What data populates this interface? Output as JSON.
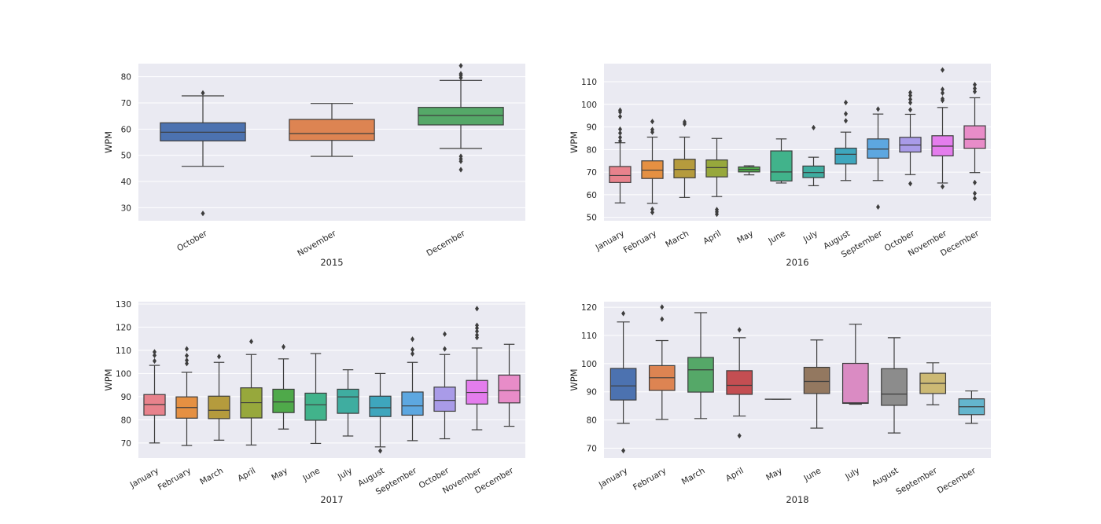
{
  "figure": {
    "background": "#ffffff",
    "plot_background": "#eaeaf2",
    "grid": true,
    "grid_color": "#ffffff",
    "line_color": "#3d3d3d"
  },
  "chart_data": [
    {
      "type": "box",
      "xlabel": "2015",
      "ylabel": "WPM",
      "ylim": [
        25,
        85
      ],
      "yticks": [
        30,
        40,
        50,
        60,
        70,
        80
      ],
      "categories": [
        "October",
        "November",
        "December"
      ],
      "colors": [
        "#4c72b0",
        "#dd8452",
        "#55a868"
      ],
      "boxes": [
        {
          "whislo": 45.8,
          "q1": 55.5,
          "med": 58.8,
          "q3": 62.4,
          "whishi": 72.7,
          "fliers": [
            27.8,
            73.8
          ]
        },
        {
          "whislo": 49.6,
          "q1": 55.7,
          "med": 58.3,
          "q3": 63.7,
          "whishi": 69.8,
          "fliers": []
        },
        {
          "whislo": 52.6,
          "q1": 61.6,
          "med": 65.2,
          "q3": 68.3,
          "whishi": 78.6,
          "fliers": [
            44.5,
            47.7,
            48.6,
            49.6,
            79.6,
            80.5,
            81.1,
            84.2
          ]
        }
      ]
    },
    {
      "type": "box",
      "xlabel": "2016",
      "ylabel": "WPM",
      "ylim": [
        48.5,
        118
      ],
      "yticks": [
        50,
        60,
        70,
        80,
        90,
        100,
        110
      ],
      "categories": [
        "January",
        "February",
        "March",
        "April",
        "May",
        "June",
        "July",
        "August",
        "September",
        "October",
        "November",
        "December"
      ],
      "colors": [
        "#e8828c",
        "#e59042",
        "#b59b3d",
        "#97a83c",
        "#4fa94a",
        "#41b38b",
        "#3fada0",
        "#3ea6bd",
        "#5da7e0",
        "#a99be8",
        "#e47ded",
        "#e88cc8"
      ],
      "boxes": [
        {
          "whislo": 56.4,
          "q1": 65.4,
          "med": 68.5,
          "q3": 72.5,
          "whishi": 83.0,
          "fliers": [
            83.8,
            85.4,
            87.3,
            89.0,
            94.6,
            96.6,
            97.4
          ]
        },
        {
          "whislo": 56.2,
          "q1": 67.2,
          "med": 70.9,
          "q3": 75.0,
          "whishi": 85.5,
          "fliers": [
            52.2,
            53.6,
            87.7,
            88.8,
            92.4
          ]
        },
        {
          "whislo": 58.8,
          "q1": 67.5,
          "med": 71.2,
          "q3": 75.7,
          "whishi": 85.5,
          "fliers": [
            91.3,
            92.2
          ]
        },
        {
          "whislo": 59.2,
          "q1": 67.9,
          "med": 72.0,
          "q3": 75.4,
          "whishi": 84.9,
          "fliers": [
            51.4,
            52.4,
            53.4
          ]
        },
        {
          "whislo": 68.8,
          "q1": 70.1,
          "med": 71.2,
          "q3": 72.3,
          "whishi": 72.8,
          "fliers": []
        },
        {
          "whislo": 65.2,
          "q1": 66.1,
          "med": 70.1,
          "q3": 79.4,
          "whishi": 84.7,
          "fliers": []
        },
        {
          "whislo": 64.0,
          "q1": 67.6,
          "med": 69.8,
          "q3": 72.7,
          "whishi": 76.6,
          "fliers": [
            89.7
          ]
        },
        {
          "whislo": 66.3,
          "q1": 73.6,
          "med": 77.9,
          "q3": 80.6,
          "whishi": 87.7,
          "fliers": [
            92.7,
            95.8,
            100.8
          ]
        },
        {
          "whislo": 66.3,
          "q1": 76.2,
          "med": 80.2,
          "q3": 84.7,
          "whishi": 95.7,
          "fliers": [
            54.6,
            97.9
          ]
        },
        {
          "whislo": 68.9,
          "q1": 78.9,
          "med": 82.0,
          "q3": 85.4,
          "whishi": 95.6,
          "fliers": [
            64.9,
            97.6,
            100.7,
            102.2,
            103.9,
            105.2
          ]
        },
        {
          "whislo": 65.2,
          "q1": 77.2,
          "med": 81.5,
          "q3": 86.1,
          "whishi": 98.6,
          "fliers": [
            63.6,
            101.7,
            102.4,
            105.0,
            106.6,
            115.2
          ]
        },
        {
          "whislo": 69.8,
          "q1": 80.5,
          "med": 84.6,
          "q3": 90.5,
          "whishi": 102.9,
          "fliers": [
            58.4,
            60.6,
            65.4,
            105.6,
            107.0,
            108.7
          ]
        }
      ]
    },
    {
      "type": "box",
      "xlabel": "2017",
      "ylabel": "WPM",
      "ylim": [
        63.5,
        131
      ],
      "yticks": [
        70,
        80,
        90,
        100,
        110,
        120,
        130
      ],
      "categories": [
        "January",
        "February",
        "March",
        "April",
        "May",
        "June",
        "July",
        "August",
        "September",
        "October",
        "November",
        "December"
      ],
      "colors": [
        "#e8828c",
        "#e59042",
        "#b59b3d",
        "#97a83c",
        "#4fa94a",
        "#41b38b",
        "#3fada0",
        "#3ea6bd",
        "#5da7e0",
        "#a99be8",
        "#e47ded",
        "#e88cc8"
      ],
      "boxes": [
        {
          "whislo": 70.0,
          "q1": 82.0,
          "med": 86.6,
          "q3": 90.9,
          "whishi": 103.5,
          "fliers": [
            105.4,
            107.8,
            109.3
          ]
        },
        {
          "whislo": 68.9,
          "q1": 80.7,
          "med": 85.3,
          "q3": 89.9,
          "whishi": 100.5,
          "fliers": [
            104.3,
            105.7,
            107.7,
            110.6
          ]
        },
        {
          "whislo": 71.2,
          "q1": 80.5,
          "med": 84.1,
          "q3": 90.2,
          "whishi": 104.8,
          "fliers": [
            107.3
          ]
        },
        {
          "whislo": 69.1,
          "q1": 80.8,
          "med": 87.4,
          "q3": 93.8,
          "whishi": 108.2,
          "fliers": [
            113.8
          ]
        },
        {
          "whislo": 76.0,
          "q1": 83.1,
          "med": 87.7,
          "q3": 93.2,
          "whishi": 106.3,
          "fliers": [
            111.5
          ]
        },
        {
          "whislo": 69.8,
          "q1": 79.8,
          "med": 86.5,
          "q3": 91.5,
          "whishi": 108.6,
          "fliers": []
        },
        {
          "whislo": 73.0,
          "q1": 82.8,
          "med": 89.9,
          "q3": 93.2,
          "whishi": 101.6,
          "fliers": []
        },
        {
          "whislo": 68.3,
          "q1": 81.4,
          "med": 85.2,
          "q3": 90.2,
          "whishi": 100.0,
          "fliers": [
            66.6
          ]
        },
        {
          "whislo": 71.0,
          "q1": 82.0,
          "med": 86.0,
          "q3": 92.0,
          "whishi": 104.8,
          "fliers": [
            108.5,
            110.3,
            114.8
          ]
        },
        {
          "whislo": 71.8,
          "q1": 83.7,
          "med": 88.4,
          "q3": 94.1,
          "whishi": 108.2,
          "fliers": [
            110.6,
            117.0
          ]
        },
        {
          "whislo": 75.7,
          "q1": 86.8,
          "med": 91.8,
          "q3": 97.0,
          "whishi": 111.0,
          "fliers": [
            115.5,
            116.6,
            118.2,
            119.6,
            120.8,
            128.0
          ]
        },
        {
          "whislo": 77.2,
          "q1": 87.3,
          "med": 92.6,
          "q3": 99.3,
          "whishi": 112.6,
          "fliers": []
        }
      ]
    },
    {
      "type": "box",
      "xlabel": "2018",
      "ylabel": "WPM",
      "ylim": [
        66.5,
        122
      ],
      "yticks": [
        70,
        80,
        90,
        100,
        110,
        120
      ],
      "categories": [
        "January",
        "February",
        "March",
        "April",
        "May",
        "June",
        "July",
        "August",
        "September",
        "December"
      ],
      "colors": [
        "#4c72b0",
        "#dd8452",
        "#55a868",
        "#c44e52",
        "#8172b3",
        "#937860",
        "#da8bc3",
        "#8c8c8c",
        "#ccb974",
        "#64b5cd"
      ],
      "boxes": [
        {
          "whislo": 78.8,
          "q1": 87.1,
          "med": 92.1,
          "q3": 98.3,
          "whishi": 114.8,
          "fliers": [
            69.1,
            117.8
          ]
        },
        {
          "whislo": 80.2,
          "q1": 90.5,
          "med": 95.0,
          "q3": 99.3,
          "whishi": 108.2,
          "fliers": [
            115.8,
            120.1
          ]
        },
        {
          "whislo": 80.5,
          "q1": 89.9,
          "med": 97.8,
          "q3": 102.2,
          "whishi": 118.1,
          "fliers": []
        },
        {
          "whislo": 81.4,
          "q1": 89.1,
          "med": 92.3,
          "q3": 97.5,
          "whishi": 109.2,
          "fliers": [
            74.4,
            112.0
          ]
        },
        {
          "whislo": 87.4,
          "q1": 87.4,
          "med": 87.4,
          "q3": 87.4,
          "whishi": 87.4,
          "fliers": []
        },
        {
          "whislo": 77.1,
          "q1": 89.4,
          "med": 93.7,
          "q3": 98.7,
          "whishi": 108.4,
          "fliers": []
        },
        {
          "whislo": 85.6,
          "q1": 85.9,
          "med": 86.1,
          "q3": 100.1,
          "whishi": 114.0,
          "fliers": []
        },
        {
          "whislo": 75.4,
          "q1": 85.2,
          "med": 89.2,
          "q3": 98.2,
          "whishi": 109.2,
          "fliers": []
        },
        {
          "whislo": 85.4,
          "q1": 89.4,
          "med": 93.0,
          "q3": 96.6,
          "whishi": 100.3,
          "fliers": []
        },
        {
          "whislo": 78.8,
          "q1": 81.9,
          "med": 84.7,
          "q3": 87.5,
          "whishi": 90.3,
          "fliers": []
        }
      ]
    }
  ]
}
